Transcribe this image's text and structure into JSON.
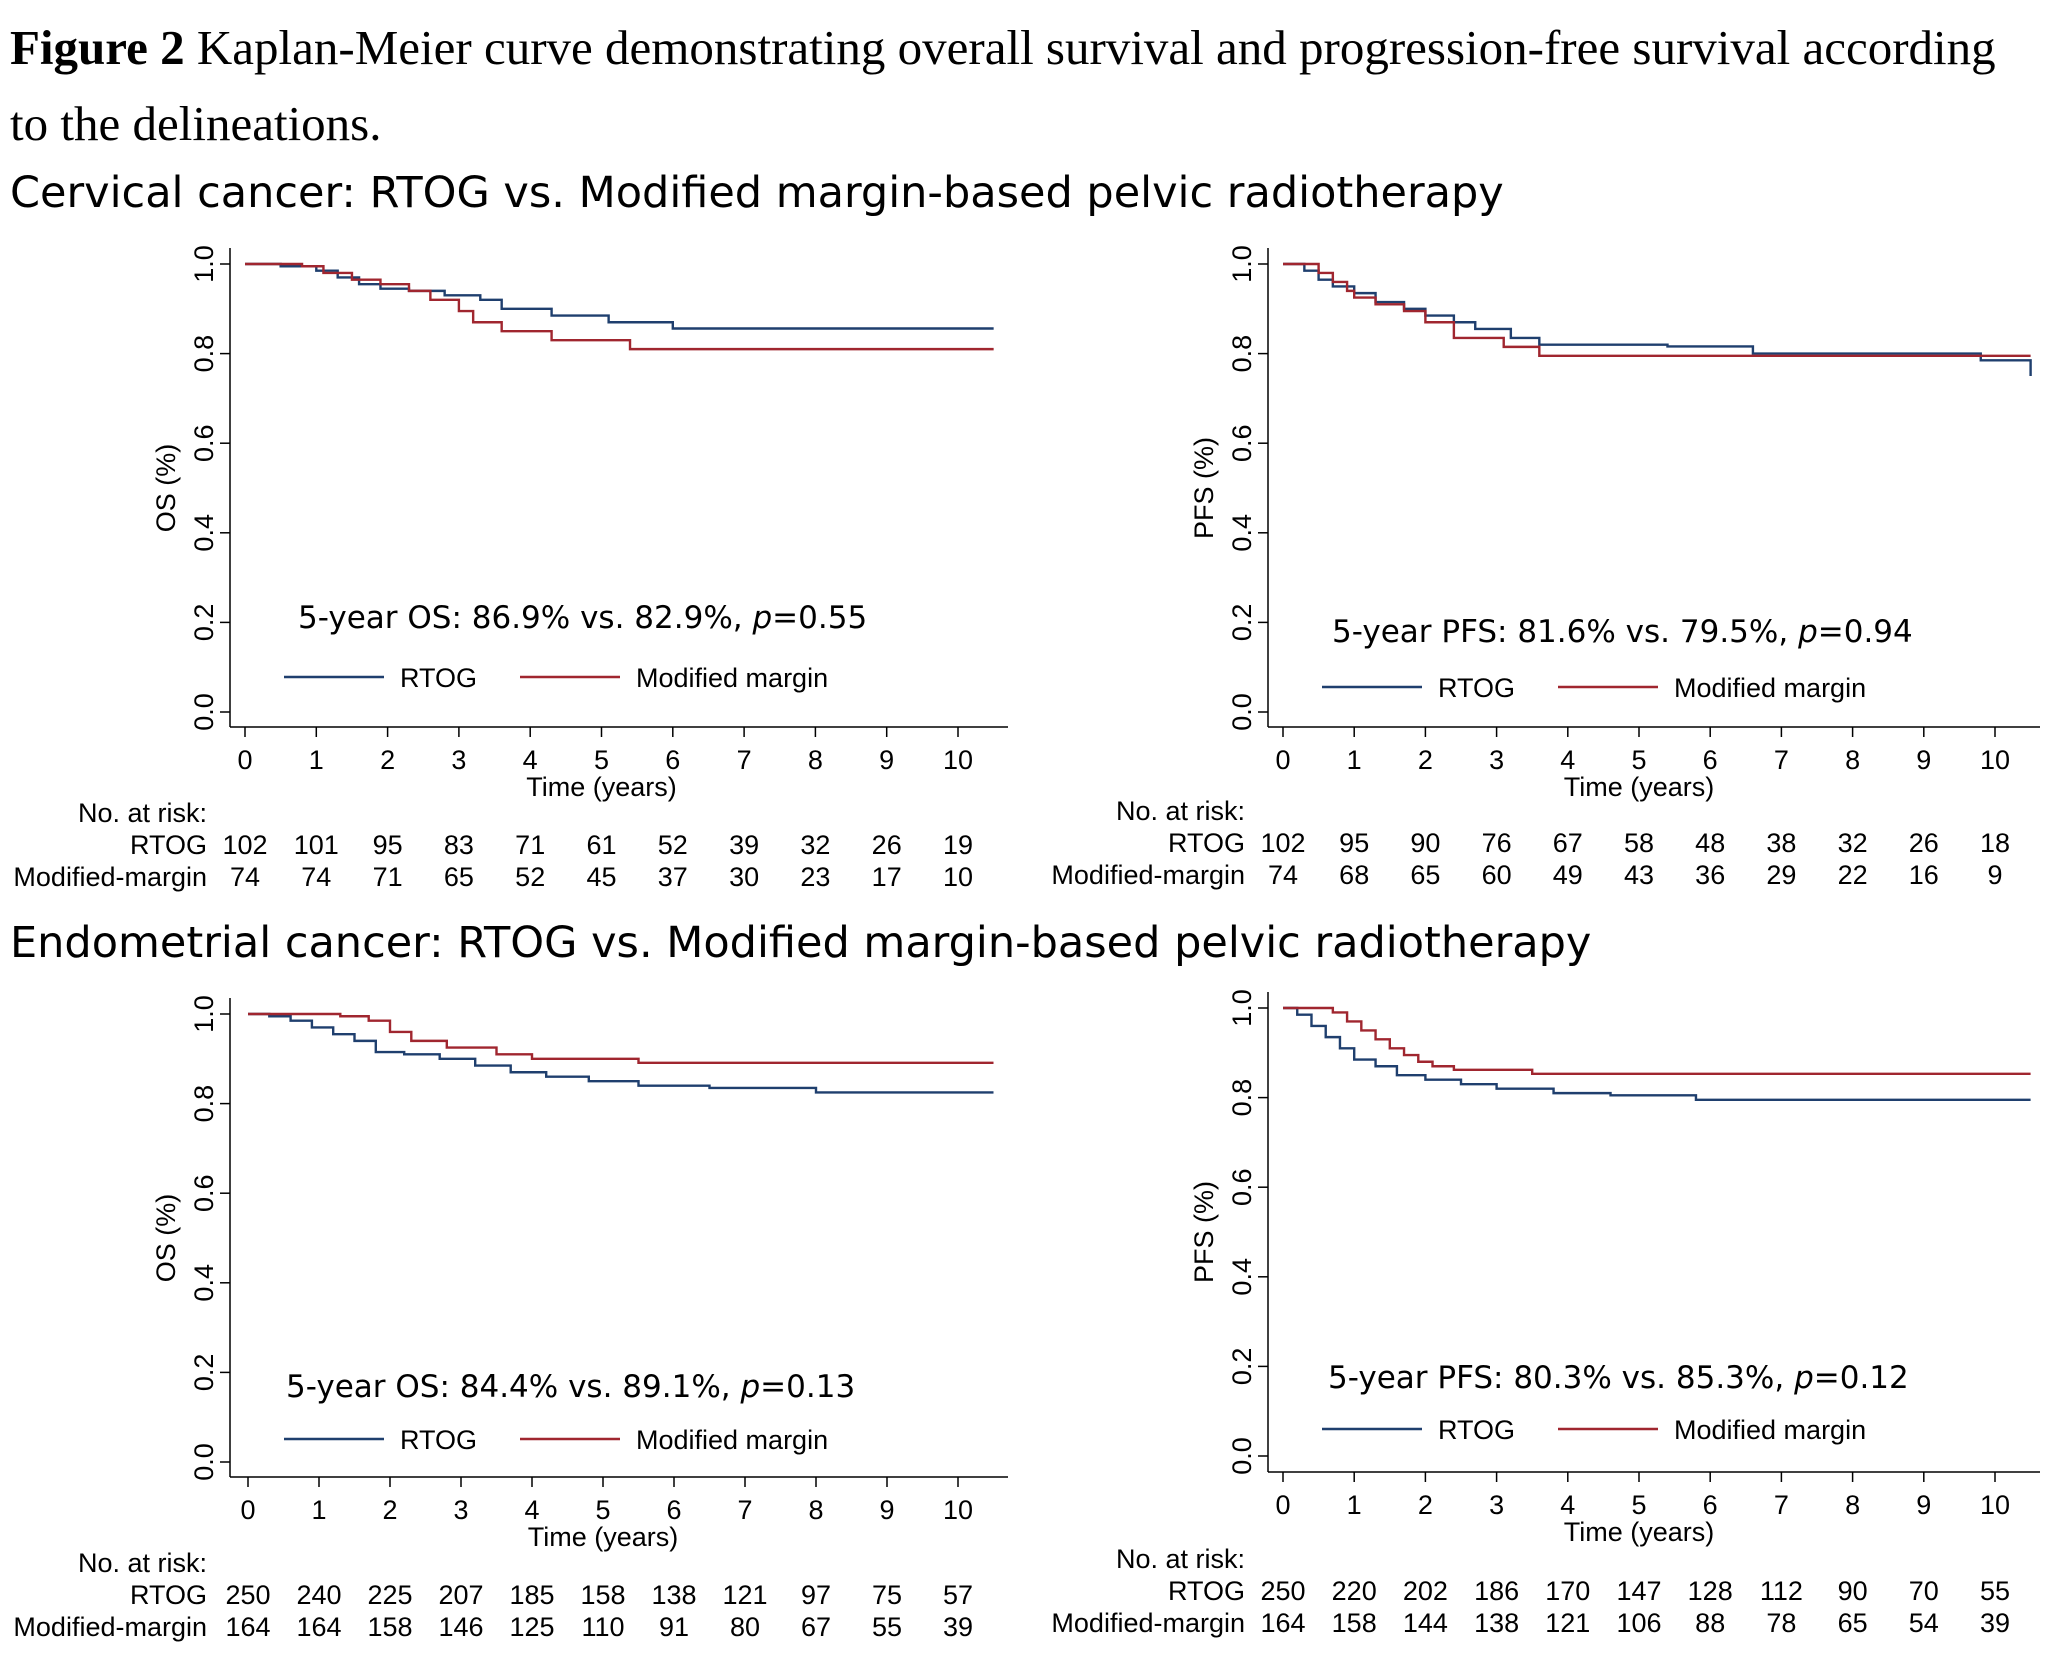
{
  "caption": {
    "label": "Figure 2",
    "text": " Kaplan-Meier curve demonstrating overall survival and progression-free survival according to the delineations."
  },
  "sections": [
    {
      "title": "Cervical cancer: RTOG vs. Modified margin-based pelvic radiotherapy"
    },
    {
      "title": "Endometrial cancer: RTOG vs. Modified margin-based pelvic radiotherapy"
    }
  ],
  "colors": {
    "rtog": "#1f3f6e",
    "modified": "#a0262f"
  },
  "chart_data": [
    {
      "type": "line",
      "title": "",
      "xlabel": "Time (years)",
      "ylabel": "OS (%)",
      "xlim": [
        0,
        10.5
      ],
      "ylim": [
        0,
        1.0
      ],
      "xticks": [
        0,
        1,
        2,
        3,
        4,
        5,
        6,
        7,
        8,
        9,
        10
      ],
      "yticks": [
        "0.0",
        "0.2",
        "0.4",
        "0.6",
        "0.8",
        "1.0"
      ],
      "annotation": {
        "prefix": "5-year OS: 86.9% vs. 82.9%, ",
        "p": "p",
        "value": "=0.55"
      },
      "legend": [
        "RTOG",
        "Modified margin"
      ],
      "series": [
        {
          "name": "RTOG",
          "color": "#1f3f6e",
          "x": [
            0,
            0.5,
            1.0,
            1.3,
            1.6,
            1.9,
            2.3,
            2.8,
            3.3,
            3.6,
            4.3,
            5.1,
            6.0,
            10.5
          ],
          "y": [
            1.0,
            0.995,
            0.985,
            0.97,
            0.955,
            0.945,
            0.94,
            0.93,
            0.92,
            0.9,
            0.885,
            0.87,
            0.856,
            0.856
          ]
        },
        {
          "name": "Modified margin",
          "color": "#a0262f",
          "x": [
            0,
            0.8,
            1.1,
            1.5,
            1.9,
            2.3,
            2.6,
            3.0,
            3.2,
            3.6,
            4.3,
            5.4,
            10.5
          ],
          "y": [
            1.0,
            0.995,
            0.98,
            0.965,
            0.955,
            0.94,
            0.92,
            0.895,
            0.87,
            0.85,
            0.83,
            0.81,
            0.81
          ]
        }
      ],
      "risk_table": {
        "header": "No. at risk:",
        "rows": [
          {
            "label": "RTOG",
            "values": [
              "102",
              "101",
              "95",
              "83",
              "71",
              "61",
              "52",
              "39",
              "32",
              "26",
              "19"
            ]
          },
          {
            "label": "Modified-margin",
            "values": [
              "74",
              "74",
              "71",
              "65",
              "52",
              "45",
              "37",
              "30",
              "23",
              "17",
              "10"
            ]
          }
        ]
      }
    },
    {
      "type": "line",
      "title": "",
      "xlabel": "Time (years)",
      "ylabel": "PFS (%)",
      "xlim": [
        0,
        10.5
      ],
      "ylim": [
        0,
        1.0
      ],
      "xticks": [
        0,
        1,
        2,
        3,
        4,
        5,
        6,
        7,
        8,
        9,
        10
      ],
      "yticks": [
        "0.0",
        "0.2",
        "0.4",
        "0.6",
        "0.8",
        "1.0"
      ],
      "annotation": {
        "prefix": "5-year PFS: 81.6% vs. 79.5%, ",
        "p": "p",
        "value": "=0.94"
      },
      "legend": [
        "RTOG",
        "Modified margin"
      ],
      "series": [
        {
          "name": "RTOG",
          "color": "#1f3f6e",
          "x": [
            0,
            0.3,
            0.5,
            0.7,
            1.0,
            1.3,
            1.7,
            2.0,
            2.4,
            2.7,
            3.2,
            3.6,
            5.4,
            6.6,
            9.8,
            10.5
          ],
          "y": [
            1.0,
            0.985,
            0.965,
            0.95,
            0.935,
            0.915,
            0.9,
            0.885,
            0.87,
            0.855,
            0.835,
            0.82,
            0.816,
            0.8,
            0.785,
            0.75
          ]
        },
        {
          "name": "Modified margin",
          "color": "#a0262f",
          "x": [
            0,
            0.5,
            0.7,
            0.9,
            1.0,
            1.3,
            1.7,
            2.0,
            2.4,
            3.1,
            3.6,
            10.5
          ],
          "y": [
            1.0,
            0.98,
            0.96,
            0.94,
            0.925,
            0.91,
            0.895,
            0.87,
            0.835,
            0.815,
            0.795,
            0.795
          ]
        }
      ],
      "risk_table": {
        "header": "No. at risk:",
        "rows": [
          {
            "label": "RTOG",
            "values": [
              "102",
              "95",
              "90",
              "76",
              "67",
              "58",
              "48",
              "38",
              "32",
              "26",
              "18"
            ]
          },
          {
            "label": "Modified-margin",
            "values": [
              "74",
              "68",
              "65",
              "60",
              "49",
              "43",
              "36",
              "29",
              "22",
              "16",
              "9"
            ]
          }
        ]
      }
    },
    {
      "type": "line",
      "title": "",
      "xlabel": "Time (years)",
      "ylabel": "OS (%)",
      "xlim": [
        0,
        10.5
      ],
      "ylim": [
        0,
        1.0
      ],
      "xticks": [
        0,
        1,
        2,
        3,
        4,
        5,
        6,
        7,
        8,
        9,
        10
      ],
      "yticks": [
        "0.0",
        "0.2",
        "0.4",
        "0.6",
        "0.8",
        "1.0"
      ],
      "annotation": {
        "prefix": "5-year OS: 84.4% vs. 89.1%, ",
        "p": "p",
        "value": "=0.13"
      },
      "legend": [
        "RTOG",
        "Modified margin"
      ],
      "series": [
        {
          "name": "RTOG",
          "color": "#1f3f6e",
          "x": [
            0,
            0.3,
            0.6,
            0.9,
            1.2,
            1.5,
            1.8,
            2.2,
            2.7,
            3.2,
            3.7,
            4.2,
            4.8,
            5.5,
            6.5,
            8.0,
            10.5
          ],
          "y": [
            1.0,
            0.995,
            0.985,
            0.97,
            0.955,
            0.94,
            0.915,
            0.91,
            0.9,
            0.885,
            0.87,
            0.86,
            0.85,
            0.84,
            0.835,
            0.825,
            0.825
          ]
        },
        {
          "name": "Modified margin",
          "color": "#a0262f",
          "x": [
            0,
            1.3,
            1.7,
            2.0,
            2.3,
            2.8,
            3.5,
            4.0,
            5.5,
            10.5
          ],
          "y": [
            1.0,
            0.995,
            0.985,
            0.96,
            0.94,
            0.925,
            0.91,
            0.9,
            0.891,
            0.891
          ]
        }
      ],
      "risk_table": {
        "header": "No. at risk:",
        "rows": [
          {
            "label": "RTOG",
            "values": [
              "250",
              "240",
              "225",
              "207",
              "185",
              "158",
              "138",
              "121",
              "97",
              "75",
              "57"
            ]
          },
          {
            "label": "Modified-margin",
            "values": [
              "164",
              "164",
              "158",
              "146",
              "125",
              "110",
              "91",
              "80",
              "67",
              "55",
              "39"
            ]
          }
        ]
      }
    },
    {
      "type": "line",
      "title": "",
      "xlabel": "Time (years)",
      "ylabel": "PFS (%)",
      "xlim": [
        0,
        10.5
      ],
      "ylim": [
        0,
        1.0
      ],
      "xticks": [
        0,
        1,
        2,
        3,
        4,
        5,
        6,
        7,
        8,
        9,
        10
      ],
      "yticks": [
        "0.0",
        "0.2",
        "0.4",
        "0.6",
        "0.8",
        "1.0"
      ],
      "annotation": {
        "prefix": "5-year PFS: 80.3% vs. 85.3%, ",
        "p": "p",
        "value": "=0.12"
      },
      "legend": [
        "RTOG",
        "Modified margin"
      ],
      "series": [
        {
          "name": "RTOG",
          "color": "#1f3f6e",
          "x": [
            0,
            0.2,
            0.4,
            0.6,
            0.8,
            1.0,
            1.3,
            1.6,
            2.0,
            2.5,
            3.0,
            3.8,
            4.6,
            5.8,
            10.5
          ],
          "y": [
            1.0,
            0.985,
            0.96,
            0.935,
            0.91,
            0.885,
            0.87,
            0.85,
            0.84,
            0.83,
            0.82,
            0.81,
            0.805,
            0.795,
            0.795
          ]
        },
        {
          "name": "Modified margin",
          "color": "#a0262f",
          "x": [
            0,
            0.7,
            0.9,
            1.1,
            1.3,
            1.5,
            1.7,
            1.9,
            2.1,
            2.4,
            3.5,
            10.5
          ],
          "y": [
            1.0,
            0.99,
            0.97,
            0.95,
            0.93,
            0.91,
            0.895,
            0.88,
            0.87,
            0.862,
            0.853,
            0.853
          ]
        }
      ],
      "risk_table": {
        "header": "No. at risk:",
        "rows": [
          {
            "label": "RTOG",
            "values": [
              "250",
              "220",
              "202",
              "186",
              "170",
              "147",
              "128",
              "112",
              "90",
              "70",
              "55"
            ]
          },
          {
            "label": "Modified-margin",
            "values": [
              "164",
              "158",
              "144",
              "138",
              "121",
              "106",
              "88",
              "78",
              "65",
              "54",
              "39"
            ]
          }
        ]
      }
    }
  ]
}
